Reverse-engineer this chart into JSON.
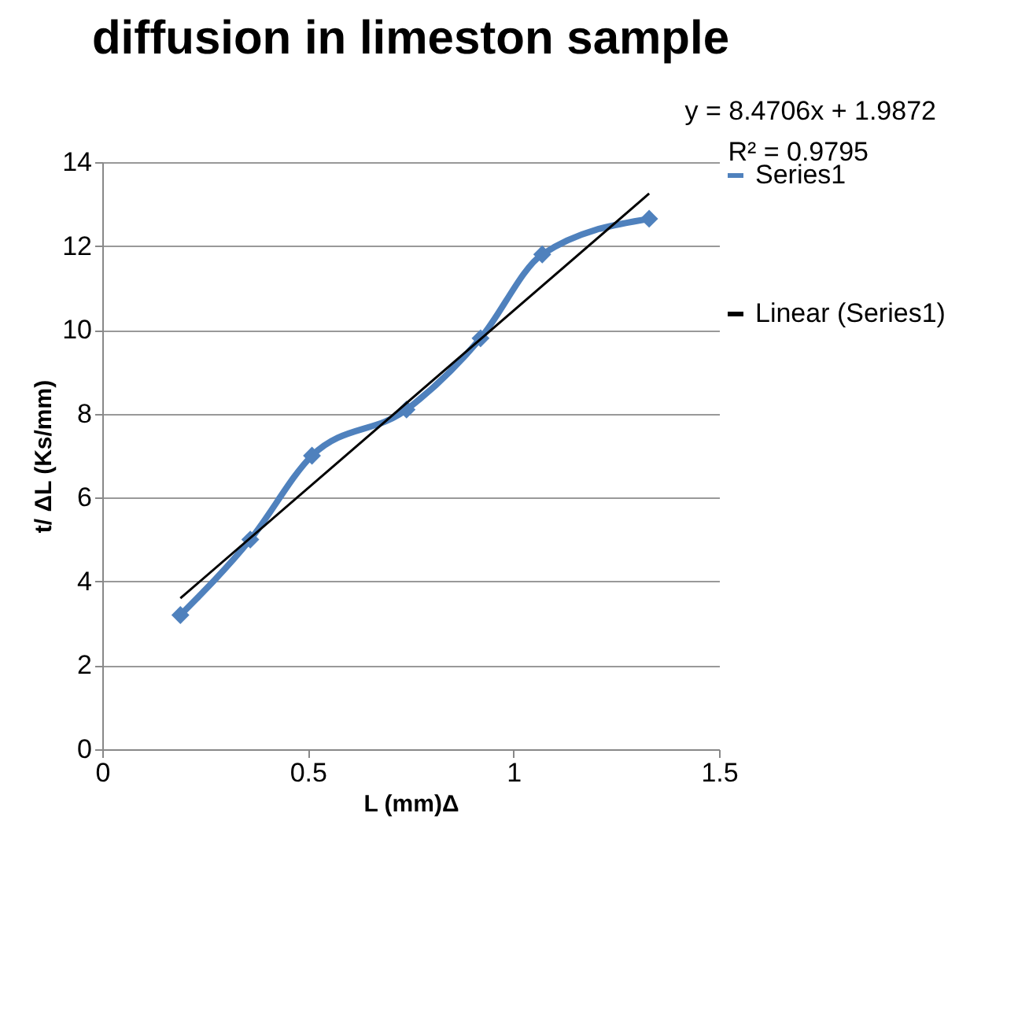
{
  "chart_data": {
    "type": "line",
    "title": "diffusion in limeston sample",
    "xlabel": "L (mm)Δ",
    "ylabel": "t/ ΔL (Ks/mm)",
    "annotations": [
      "y = 8.4706x + 1.9872",
      "R² = 0.9795"
    ],
    "x": [
      0.19,
      0.36,
      0.51,
      0.74,
      0.92,
      1.07,
      1.33
    ],
    "series": [
      {
        "name": "Series1",
        "color": "#4f81bd",
        "values": [
          3.2,
          5.0,
          7.0,
          8.1,
          9.8,
          11.8,
          12.65
        ]
      },
      {
        "name": "Linear (Series1)",
        "color": "#000000",
        "type": "line",
        "marker": "none",
        "x": [
          0.19,
          1.33
        ],
        "values": [
          3.6,
          13.25
        ]
      }
    ],
    "xlim": [
      0,
      1.5
    ],
    "xticks": [
      0,
      0.5,
      1,
      1.5
    ],
    "ylim": [
      0,
      14
    ],
    "yticks": [
      0,
      2,
      4,
      6,
      8,
      10,
      12,
      14
    ],
    "grid": "y",
    "legend": "right",
    "marker": "diamond",
    "line_style": "solid"
  }
}
